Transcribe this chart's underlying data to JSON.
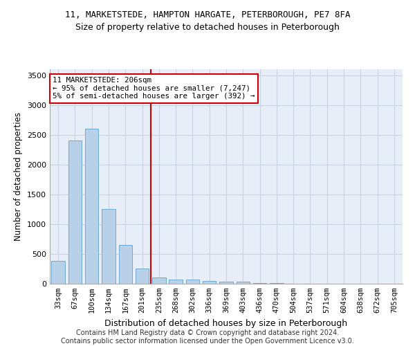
{
  "title_line1": "11, MARKETSTEDE, HAMPTON HARGATE, PETERBOROUGH, PE7 8FA",
  "title_line2": "Size of property relative to detached houses in Peterborough",
  "xlabel": "Distribution of detached houses by size in Peterborough",
  "ylabel": "Number of detached properties",
  "footer_line1": "Contains HM Land Registry data © Crown copyright and database right 2024.",
  "footer_line2": "Contains public sector information licensed under the Open Government Licence v3.0.",
  "categories": [
    "33sqm",
    "67sqm",
    "100sqm",
    "134sqm",
    "167sqm",
    "201sqm",
    "235sqm",
    "268sqm",
    "302sqm",
    "336sqm",
    "369sqm",
    "403sqm",
    "436sqm",
    "470sqm",
    "504sqm",
    "537sqm",
    "571sqm",
    "604sqm",
    "638sqm",
    "672sqm",
    "705sqm"
  ],
  "values": [
    380,
    2400,
    2600,
    1250,
    650,
    260,
    100,
    65,
    65,
    50,
    40,
    30,
    15,
    8,
    5,
    3,
    2,
    2,
    1,
    1,
    1
  ],
  "bar_color": "#b8d0e8",
  "bar_edge_color": "#6aaad4",
  "grid_color": "#c8d4e4",
  "background_color": "#e8eef8",
  "red_line_x": 5.5,
  "red_line_color": "#cc0000",
  "annotation_text": "11 MARKETSTEDE: 206sqm\n← 95% of detached houses are smaller (7,247)\n5% of semi-detached houses are larger (392) →",
  "annotation_box_color": "#cc0000",
  "ylim": [
    0,
    3600
  ],
  "yticks": [
    0,
    500,
    1000,
    1500,
    2000,
    2500,
    3000,
    3500
  ],
  "title1_fontsize": 9,
  "title2_fontsize": 9,
  "footer_fontsize": 7
}
